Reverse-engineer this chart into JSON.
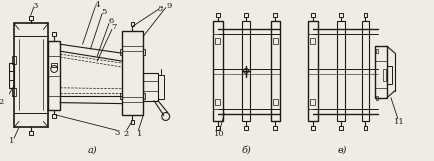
{
  "fig_width": 4.34,
  "fig_height": 1.61,
  "dpi": 100,
  "bg_color": "#f0ece4",
  "line_color": "#1a1a1a",
  "label_a": "а)",
  "label_b": "б)",
  "label_v": "в)"
}
